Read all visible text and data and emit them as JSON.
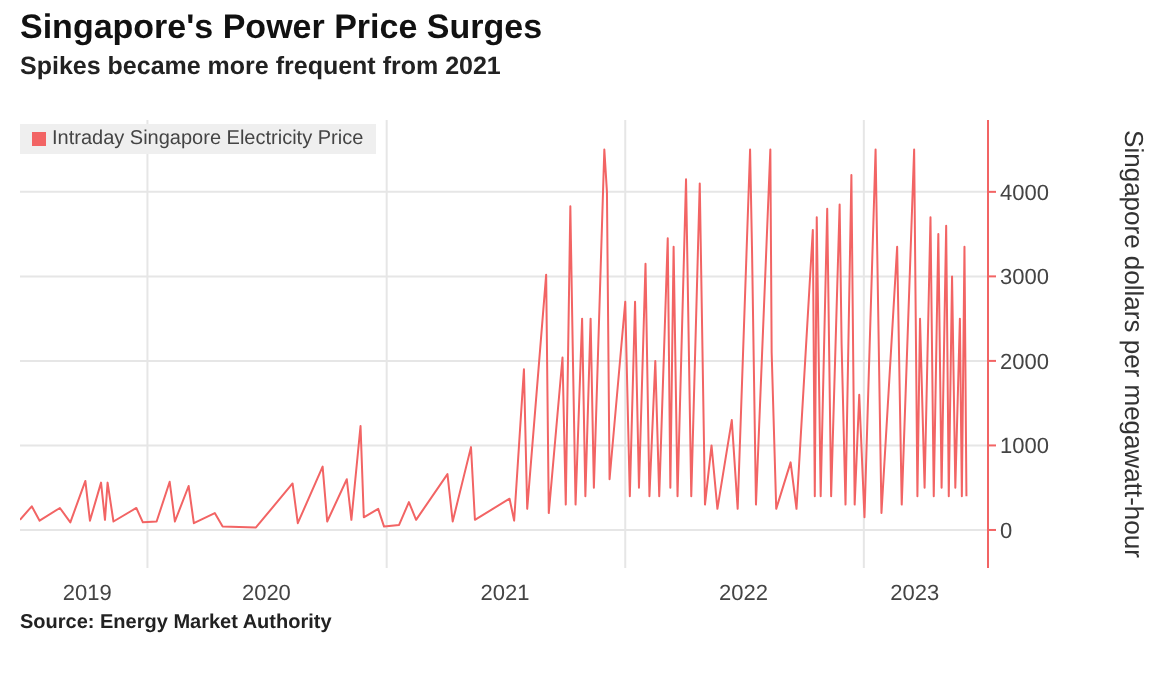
{
  "chart_data": {
    "type": "line",
    "title": "Singapore's Power Price Surges",
    "subtitle": "Spikes became more frequent from 2021",
    "ylabel": "Singapore dollars per megawatt-hour",
    "annotations": [
      "Source: Energy Market Authority"
    ],
    "x": [
      "2019-06-20",
      "2019-07-08",
      "2019-07-20",
      "2019-08-20",
      "2019-09-05",
      "2019-09-28",
      "2019-10-05",
      "2019-10-22",
      "2019-10-28",
      "2019-11-01",
      "2019-11-10",
      "2019-12-15",
      "2019-12-25",
      "2020-01-15",
      "2020-02-04",
      "2020-02-12",
      "2020-03-04",
      "2020-03-12",
      "2020-04-13",
      "2020-04-25",
      "2020-06-15",
      "2020-08-10",
      "2020-08-18",
      "2020-09-25",
      "2020-10-02",
      "2020-11-01",
      "2020-11-08",
      "2020-11-22",
      "2020-11-27",
      "2020-12-19",
      "2020-12-28",
      "2021-01-20",
      "2021-02-04",
      "2021-02-15",
      "2021-04-04",
      "2021-04-12",
      "2021-05-10",
      "2021-05-16",
      "2021-07-08",
      "2021-07-15",
      "2021-07-30",
      "2021-08-04",
      "2021-09-02",
      "2021-09-06",
      "2021-09-27",
      "2021-10-02",
      "2021-10-09",
      "2021-10-13",
      "2021-10-17",
      "2021-10-27",
      "2021-11-01",
      "2021-11-09",
      "2021-11-14",
      "2021-11-30",
      "2021-12-04",
      "2021-12-08",
      "2022-01-01",
      "2022-01-08",
      "2022-01-16",
      "2022-01-22",
      "2022-02-01",
      "2022-02-07",
      "2022-02-16",
      "2022-02-22",
      "2022-03-07",
      "2022-03-11",
      "2022-03-16",
      "2022-03-22",
      "2022-04-04",
      "2022-04-12",
      "2022-04-25",
      "2022-05-03",
      "2022-05-13",
      "2022-05-22",
      "2022-06-13",
      "2022-06-22",
      "2022-07-11",
      "2022-07-14",
      "2022-07-20",
      "2022-08-11",
      "2022-08-13",
      "2022-08-20",
      "2022-09-11",
      "2022-09-20",
      "2022-10-15",
      "2022-10-18",
      "2022-10-21",
      "2022-10-27",
      "2022-11-06",
      "2022-11-12",
      "2022-11-25",
      "2022-11-28",
      "2022-12-04",
      "2022-12-13",
      "2022-12-18",
      "2022-12-25",
      "2023-01-02",
      "2023-01-19",
      "2023-01-28",
      "2023-02-21",
      "2023-02-28",
      "2023-03-19",
      "2023-03-24",
      "2023-03-28",
      "2023-04-04",
      "2023-04-13",
      "2023-04-18",
      "2023-04-25",
      "2023-04-30",
      "2023-05-07",
      "2023-05-11",
      "2023-05-16",
      "2023-05-21",
      "2023-05-28",
      "2023-05-31",
      "2023-06-04",
      "2023-06-07"
    ],
    "series": [
      {
        "name": "Intraday Singapore Electricity Price",
        "color": "#f26464",
        "values": [
          120,
          280,
          110,
          260,
          90,
          580,
          110,
          560,
          120,
          560,
          100,
          260,
          90,
          100,
          570,
          100,
          520,
          80,
          200,
          40,
          30,
          550,
          80,
          750,
          100,
          600,
          120,
          1230,
          150,
          250,
          40,
          60,
          330,
          120,
          660,
          100,
          980,
          120,
          370,
          110,
          1900,
          250,
          3020,
          200,
          2040,
          300,
          3830,
          2000,
          300,
          2500,
          400,
          2500,
          500,
          4500,
          4000,
          600,
          2700,
          400,
          2700,
          500,
          3150,
          400,
          2000,
          400,
          3450,
          500,
          3350,
          400,
          4150,
          400,
          4100,
          300,
          1000,
          250,
          1300,
          250,
          4500,
          3300,
          300,
          4500,
          2100,
          250,
          800,
          250,
          3550,
          400,
          3700,
          400,
          3800,
          400,
          3850,
          2200,
          300,
          4200,
          300,
          1600,
          150,
          4500,
          200,
          3350,
          300,
          4500,
          400,
          2500,
          500,
          3700,
          400,
          3500,
          500,
          3600,
          400,
          3000,
          500,
          2500,
          400,
          3350,
          400
        ]
      }
    ],
    "xlim": [
      "2019-06-20",
      "2023-07-10"
    ],
    "xticks": [
      {
        "value": "2019-10-01",
        "label": "2019"
      },
      {
        "value": "2020-01-01",
        "label": null
      },
      {
        "value": "2020-07-01",
        "label": "2020"
      },
      {
        "value": "2021-01-01",
        "label": null
      },
      {
        "value": "2021-07-01",
        "label": "2021"
      },
      {
        "value": "2022-01-01",
        "label": null
      },
      {
        "value": "2022-07-01",
        "label": "2022"
      },
      {
        "value": "2023-01-01",
        "label": null
      },
      {
        "value": "2023-03-20",
        "label": "2023"
      }
    ],
    "ylim": [
      -450,
      4850
    ],
    "yticks": [
      0,
      1000,
      2000,
      3000,
      4000
    ],
    "grid": true,
    "legend": "top left",
    "marker": "none",
    "line_style": "solid"
  }
}
